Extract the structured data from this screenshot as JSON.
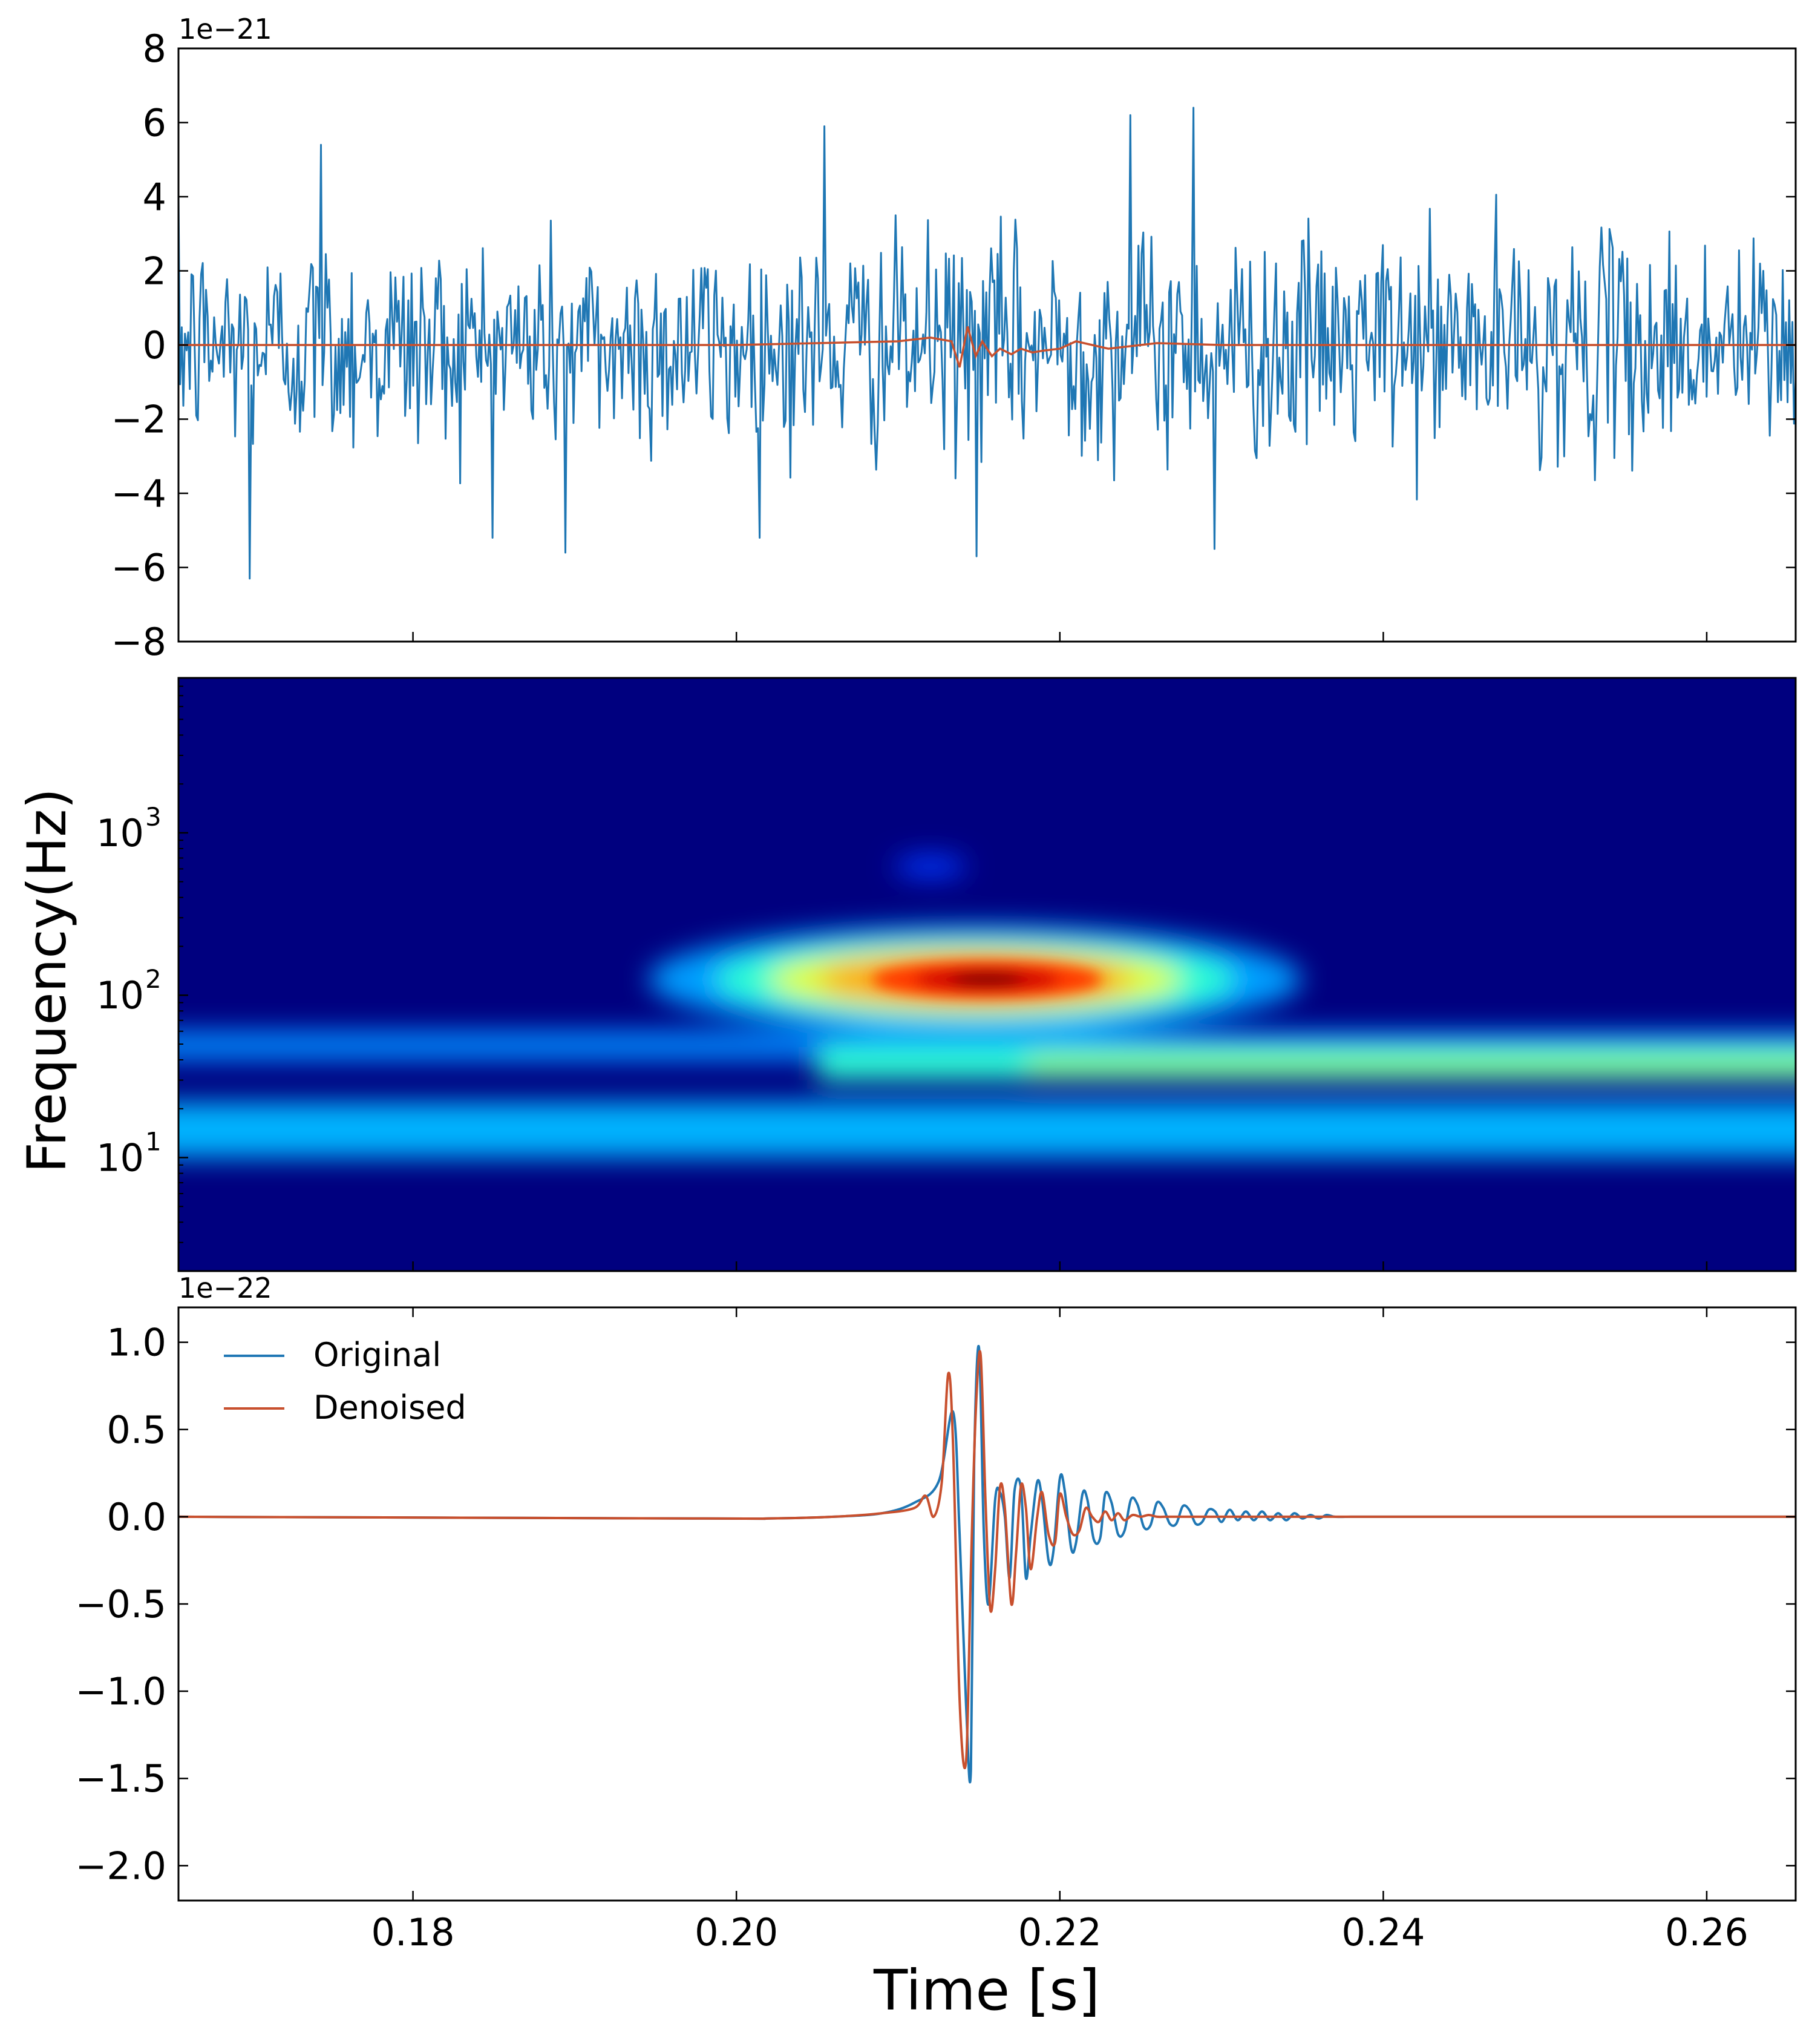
{
  "chart_data": [
    {
      "type": "line",
      "panel": "top",
      "offset_text": "1e−21",
      "xlim": [
        0.1655,
        0.2655
      ],
      "ylim": [
        -8,
        8
      ],
      "yticks": [
        8,
        6,
        4,
        2,
        0,
        -2,
        -4,
        -6,
        -8
      ],
      "ytick_labels": [
        "8",
        "6",
        "4",
        "2",
        "0",
        "−2",
        "−4",
        "−6",
        "−8"
      ],
      "grid": false,
      "series": [
        {
          "color": "#1f77b4",
          "description_of_data": "noisy strain, approx 1000 samples; amplitude ~1.5 std with spikes to about ±6.4",
          "notable_peaks": [
            [
              0.1699,
              -6.3
            ],
            [
              0.2283,
              6.4
            ],
            [
              0.2296,
              -5.5
            ],
            [
              0.2244,
              6.2
            ],
            [
              0.2054,
              5.9
            ],
            [
              0.1894,
              -5.6
            ],
            [
              0.2148,
              -5.7
            ],
            [
              0.1743,
              5.4
            ]
          ]
        },
        {
          "color": "#c8502e",
          "x": [
            0.1655,
            0.2,
            0.21,
            0.212,
            0.2133,
            0.2138,
            0.2143,
            0.2148,
            0.2152,
            0.2158,
            0.2163,
            0.217,
            0.2176,
            0.2183,
            0.219,
            0.22,
            0.221,
            0.223,
            0.226,
            0.23,
            0.24,
            0.2655
          ],
          "y": [
            0,
            0,
            0.1,
            0.2,
            0.1,
            -0.6,
            0.5,
            -0.3,
            0.1,
            -0.3,
            -0.1,
            -0.25,
            -0.1,
            -0.2,
            -0.15,
            -0.1,
            0.1,
            -0.1,
            0.05,
            0,
            0,
            0
          ]
        }
      ]
    },
    {
      "type": "heatmap",
      "panel": "middle",
      "ylabel": "Frequency(Hz)",
      "yscale": "log",
      "ylim": [
        2,
        9000
      ],
      "xlim": [
        0.1655,
        0.2655
      ],
      "yticks": [
        10,
        100,
        1000
      ],
      "ytick_labels": [
        {
          "base": "10",
          "exp": "1"
        },
        {
          "base": "10",
          "exp": "2"
        },
        {
          "base": "10",
          "exp": "3"
        }
      ],
      "colormap": "jet",
      "features": [
        {
          "name": "peak",
          "t": 0.2155,
          "f": 125,
          "intensity": 1.0
        },
        {
          "name": "chirp-band",
          "t_range": [
            0.205,
            0.2655
          ],
          "f": 37,
          "intensity": 0.5
        },
        {
          "name": "low-band",
          "t_range": [
            0.1655,
            0.2655
          ],
          "f": 15,
          "intensity": 0.3
        },
        {
          "name": "faint-high",
          "t": 0.212,
          "f": 620,
          "intensity": 0.12
        }
      ]
    },
    {
      "type": "line",
      "panel": "bottom",
      "offset_text": "1e−22",
      "xlabel": "Time [s]",
      "xlim": [
        0.1655,
        0.2655
      ],
      "ylim": [
        -2.2,
        1.2
      ],
      "xticks": [
        0.18,
        0.2,
        0.22,
        0.24,
        0.26
      ],
      "xtick_labels": [
        "0.18",
        "0.20",
        "0.22",
        "0.24",
        "0.26"
      ],
      "yticks": [
        1.0,
        0.5,
        0.0,
        -0.5,
        -1.0,
        -1.5,
        -2.0
      ],
      "ytick_labels": [
        "1.0",
        "0.5",
        "0.0",
        "−0.5",
        "−1.0",
        "−1.5",
        "−2.0"
      ],
      "legend": "upper-left",
      "grid": false,
      "series": [
        {
          "name": "Original",
          "color": "#1f77b4",
          "x": [
            0.1655,
            0.198,
            0.202,
            0.206,
            0.209,
            0.211,
            0.2125,
            0.2134,
            0.2138,
            0.2142,
            0.2145,
            0.2147,
            0.215,
            0.2153,
            0.2156,
            0.216,
            0.2163,
            0.2166,
            0.2169,
            0.2172,
            0.2176,
            0.2179,
            0.2182,
            0.2186,
            0.2189,
            0.2193,
            0.2196,
            0.22,
            0.2203,
            0.2207,
            0.221,
            0.2214,
            0.2217,
            0.2221,
            0.2225,
            0.2228,
            0.2232,
            0.2236,
            0.224,
            0.2244,
            0.2248,
            0.2252,
            0.2256,
            0.226,
            0.2264,
            0.2268,
            0.2272,
            0.2276,
            0.228,
            0.2284,
            0.2288,
            0.2292,
            0.2296,
            0.23,
            0.2305,
            0.231,
            0.2315,
            0.232,
            0.2325,
            0.233,
            0.2335,
            0.234,
            0.2345,
            0.235,
            0.2355,
            0.236,
            0.2365,
            0.237,
            0.238,
            0.239,
            0.24,
            0.242,
            0.2655
          ],
          "y": [
            0,
            -0.01,
            -0.01,
            0,
            0.02,
            0.08,
            0.2,
            0.6,
            -0.1,
            -1.08,
            -1.45,
            0.3,
            0.97,
            -0.1,
            -0.5,
            0.1,
            0.14,
            0.0,
            -0.35,
            0.15,
            0.16,
            -0.35,
            -0.1,
            0.2,
            0.1,
            -0.25,
            -0.2,
            0.22,
            0.15,
            -0.18,
            -0.15,
            0.13,
            0.1,
            -0.13,
            -0.12,
            0.13,
            0.08,
            -0.1,
            -0.08,
            0.1,
            0.07,
            -0.06,
            -0.05,
            0.08,
            0.05,
            -0.04,
            -0.04,
            0.06,
            0.04,
            -0.04,
            -0.03,
            0.04,
            0.03,
            -0.03,
            0.04,
            -0.02,
            0.03,
            -0.02,
            0.03,
            -0.02,
            0.02,
            -0.02,
            0.02,
            -0.01,
            0.01,
            -0.01,
            0.01,
            0,
            0,
            0,
            0,
            0,
            0
          ]
        },
        {
          "name": "Denoised",
          "color": "#c8502e",
          "x": [
            0.1655,
            0.198,
            0.202,
            0.206,
            0.209,
            0.211,
            0.2117,
            0.2122,
            0.2127,
            0.2131,
            0.2134,
            0.2138,
            0.2142,
            0.2145,
            0.2148,
            0.2151,
            0.2154,
            0.2157,
            0.216,
            0.2163,
            0.2166,
            0.217,
            0.2173,
            0.2176,
            0.2179,
            0.2182,
            0.2186,
            0.2189,
            0.2193,
            0.2197,
            0.22,
            0.2204,
            0.2208,
            0.2212,
            0.2216,
            0.222,
            0.2224,
            0.2228,
            0.2232,
            0.2236,
            0.224,
            0.2245,
            0.225,
            0.2255,
            0.226,
            0.2265,
            0.227,
            0.228,
            0.23,
            0.235,
            0.24,
            0.2655
          ],
          "y": [
            0,
            -0.01,
            -0.01,
            0,
            0.02,
            0.05,
            0.12,
            0.0,
            0.2,
            0.82,
            0.4,
            -1.05,
            -1.4,
            -0.3,
            0.6,
            0.93,
            0.1,
            -0.53,
            -0.3,
            0.17,
            0.05,
            -0.5,
            -0.2,
            0.18,
            0.05,
            -0.3,
            0.0,
            0.14,
            -0.1,
            -0.15,
            0.13,
            0.0,
            -0.1,
            -0.08,
            0.05,
            0.0,
            -0.03,
            0.03,
            -0.02,
            0.02,
            -0.02,
            0.01,
            0.0,
            0.01,
            0.0,
            0.0,
            0.0,
            0.0,
            0.0,
            0.0,
            0,
            0
          ]
        }
      ]
    }
  ],
  "colors": {
    "original": "#1f77b4",
    "denoised": "#c8502e",
    "axes": "#000000"
  }
}
